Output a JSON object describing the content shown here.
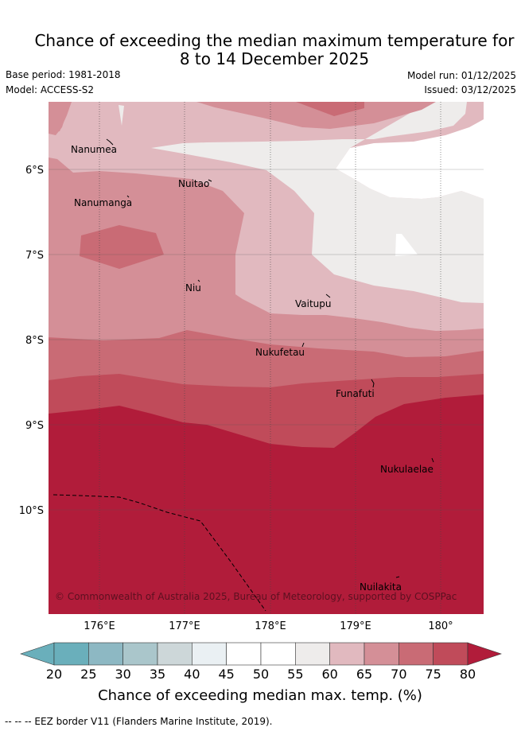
{
  "title": {
    "line1": "Chance of exceeding the median maximum temperature for",
    "line2": "8 to 14 December 2025"
  },
  "meta": {
    "base_period": "Base period: 1981-2018",
    "model": "Model: ACCESS-S2",
    "model_run": "Model run: 01/12/2025",
    "issued": "Issued: 03/12/2025"
  },
  "axes": {
    "lon_ticks": [
      "176°E",
      "177°E",
      "178°E",
      "179°E",
      "180°"
    ],
    "lat_ticks": [
      "6°S",
      "7°S",
      "8°S",
      "9°S",
      "10°S"
    ]
  },
  "places": [
    "Nanumea",
    "Nuitao",
    "Nanumanga",
    "Niu",
    "Vaitupu",
    "Nukufetau",
    "Funafuti",
    "Nukulaelae",
    "Nuilakita"
  ],
  "copyright": "© Commonwealth of Australia 2025, Bureau of Meteorology, supported by COSPPac",
  "colorbar": {
    "labels": [
      "20",
      "25",
      "30",
      "35",
      "40",
      "45",
      "50",
      "55",
      "60",
      "65",
      "70",
      "75",
      "80"
    ],
    "colors": [
      "#6aafbb",
      "#8db8c3",
      "#aac6cb",
      "#cdd7d9",
      "#eaf0f3",
      "#ffffff",
      "#ffffff",
      "#eeeceb",
      "#e1b9bf",
      "#d48f97",
      "#c96b75",
      "#c04b5a",
      "#b11c3a"
    ],
    "title": "Chance of exceeding median max. temp. (%)"
  },
  "footer": "-- -- -- EEZ border V11 (Flanders Marine Institute, 2019)."
}
